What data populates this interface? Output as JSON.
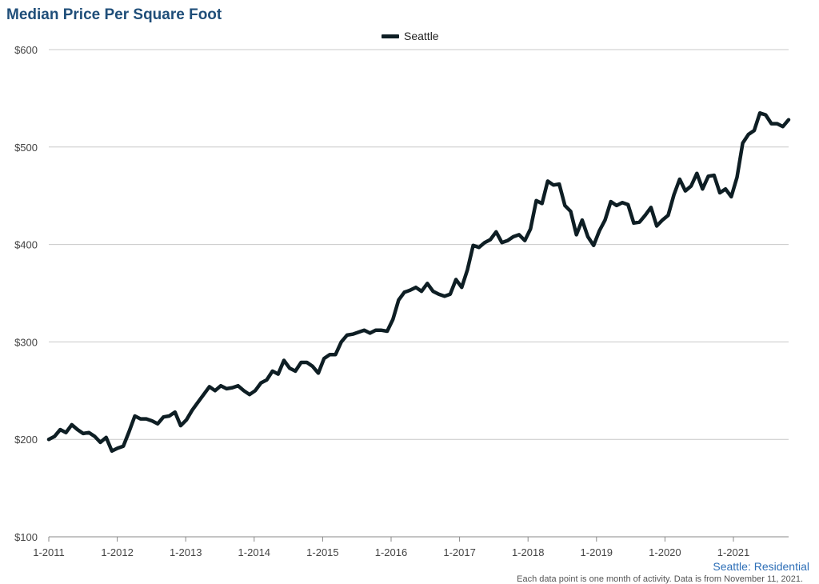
{
  "title": "Median Price Per Square Foot",
  "source_label": "Seattle: Residential",
  "footnote": "Each data point is one month of activity. Data is from November 11, 2021.",
  "colors": {
    "line": "#0e1e24",
    "grid": "#c8c8c8",
    "title": "#1f4e79",
    "source": "#2e6fb7"
  },
  "chart_data": {
    "type": "line",
    "title": "Median Price Per Square Foot",
    "xlabel": "",
    "ylabel": "",
    "ylim": [
      100,
      600
    ],
    "yticks": [
      "$600",
      "$500",
      "$400",
      "$300",
      "$200",
      "$100"
    ],
    "ytick_values": [
      600,
      500,
      400,
      300,
      200,
      100
    ],
    "xticks": [
      "1-2011",
      "1-2012",
      "1-2013",
      "1-2014",
      "1-2015",
      "1-2016",
      "1-2017",
      "1-2018",
      "1-2019",
      "1-2020",
      "1-2021"
    ],
    "x_start": "1-2011",
    "x_end": "10-2021",
    "legend": {
      "position": "top-center"
    },
    "grid": true,
    "series": [
      {
        "name": "Seattle",
        "values": [
          200,
          203,
          210,
          207,
          215,
          210,
          206,
          207,
          203,
          197,
          202,
          188,
          191,
          193,
          208,
          224,
          221,
          221,
          219,
          216,
          223,
          224,
          228,
          214,
          220,
          230,
          238,
          246,
          254,
          250,
          255,
          252,
          253,
          255,
          250,
          246,
          250,
          258,
          261,
          270,
          267,
          281,
          273,
          270,
          279,
          279,
          275,
          268,
          283,
          287,
          287,
          300,
          307,
          308,
          310,
          312,
          309,
          312,
          312,
          311,
          323,
          343,
          351,
          353,
          356,
          352,
          360,
          352,
          349,
          347,
          349,
          364,
          356,
          374,
          399,
          397,
          402,
          405,
          413,
          402,
          404,
          408,
          410,
          404,
          416,
          445,
          442,
          465,
          461,
          462,
          440,
          434,
          410,
          425,
          408,
          399,
          414,
          425,
          444,
          440,
          443,
          441,
          422,
          423,
          430,
          438,
          419,
          425,
          430,
          451,
          467,
          455,
          460,
          473,
          457,
          470,
          471,
          453,
          457,
          449,
          469,
          504,
          513,
          517,
          535,
          533,
          524,
          524,
          521,
          528
        ]
      }
    ]
  }
}
